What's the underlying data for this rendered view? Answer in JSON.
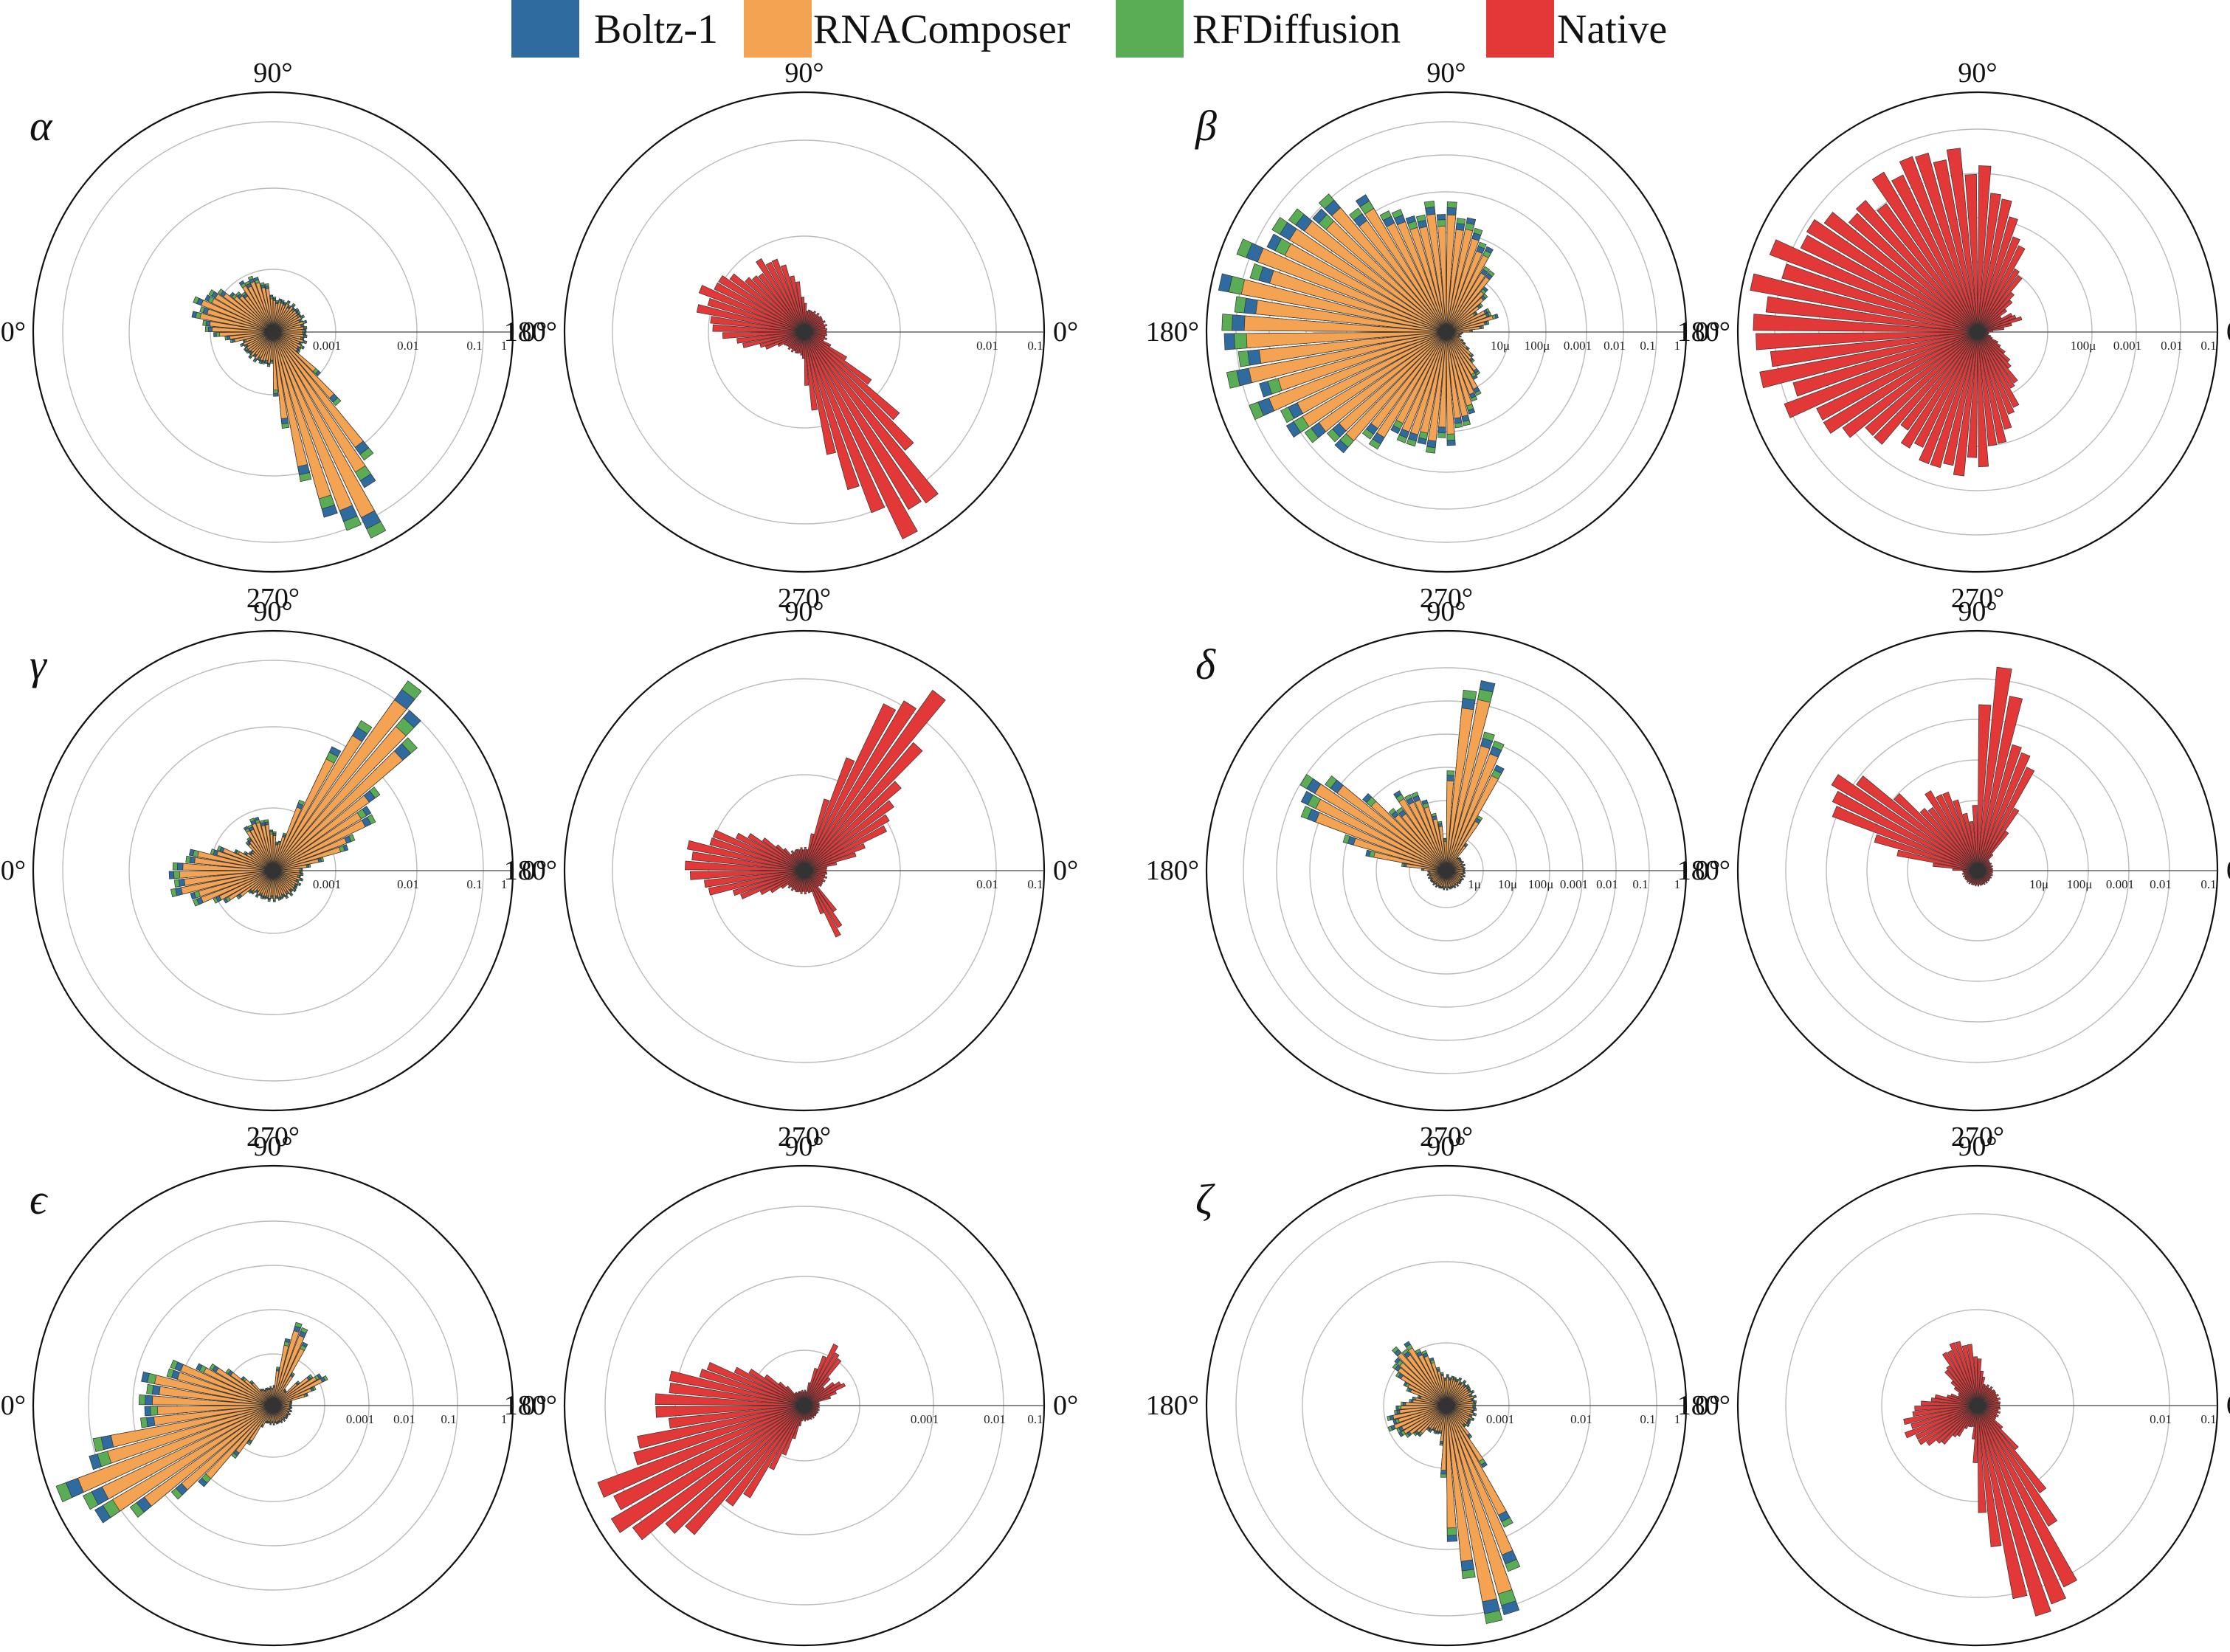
{
  "legend": [
    {
      "label": "Boltz-1",
      "color": "#2f6b9e"
    },
    {
      "label": "RNAComposer",
      "color": "#f4a353"
    },
    {
      "label": "RFDiffusion",
      "color": "#5aad55"
    },
    {
      "label": "Native",
      "color": "#e23838"
    }
  ],
  "angle_labels": {
    "deg0": "0°",
    "deg90": "90°",
    "deg180": "180°",
    "deg270": "270°"
  },
  "chart_data": [
    {
      "panel": "α",
      "type": "polar-histogram",
      "scale": "log",
      "series_shown": [
        "Boltz-1",
        "RNAComposer",
        "RFDiffusion"
      ],
      "ticks": [
        "0.001",
        "0.01",
        "0.1",
        "1"
      ],
      "peaks": [
        {
          "angle": 160,
          "value": 0.003
        },
        {
          "angle": 295,
          "value": 0.5
        }
      ]
    },
    {
      "panel": "α-native",
      "type": "polar-histogram",
      "scale": "log",
      "series_shown": [
        "Native"
      ],
      "ticks": [
        "0.01",
        "0.1"
      ],
      "peaks": [
        {
          "angle": 160,
          "value": 0.009
        },
        {
          "angle": 300,
          "value": 0.09
        }
      ]
    },
    {
      "panel": "β",
      "type": "polar-histogram",
      "scale": "log",
      "series_shown": [
        "Boltz-1",
        "RNAComposer",
        "RFDiffusion"
      ],
      "ticks": [
        "10μ",
        "100μ",
        "0.001",
        "0.01",
        "0.1",
        "1"
      ],
      "peaks": [
        {
          "angle": 170,
          "value": 0.4
        },
        {
          "angle": 90,
          "value": 0.1
        },
        {
          "angle": 250,
          "value": 0.05
        }
      ]
    },
    {
      "panel": "β-native",
      "type": "polar-histogram",
      "scale": "log",
      "series_shown": [
        "Native"
      ],
      "ticks": [
        "100μ",
        "0.001",
        "0.01",
        "0.1"
      ],
      "peaks": [
        {
          "angle": 175,
          "value": 0.2
        },
        {
          "angle": 120,
          "value": 0.05
        },
        {
          "angle": 250,
          "value": 0.03
        }
      ]
    },
    {
      "panel": "γ",
      "type": "polar-histogram",
      "scale": "log",
      "series_shown": [
        "Boltz-1",
        "RNAComposer",
        "RFDiffusion"
      ],
      "ticks": [
        "0.001",
        "0.01",
        "0.1",
        "1"
      ],
      "peaks": [
        {
          "angle": 50,
          "value": 0.5
        },
        {
          "angle": 185,
          "value": 0.005
        }
      ]
    },
    {
      "panel": "γ-native",
      "type": "polar-histogram",
      "scale": "log",
      "series_shown": [
        "Native"
      ],
      "ticks": [
        "0.01",
        "0.1"
      ],
      "peaks": [
        {
          "angle": 55,
          "value": 0.08
        },
        {
          "angle": 180,
          "value": 0.01
        }
      ]
    },
    {
      "panel": "δ",
      "type": "polar-histogram",
      "scale": "log",
      "series_shown": [
        "Boltz-1",
        "RNAComposer",
        "RFDiffusion"
      ],
      "ticks": [
        "1μ",
        "10μ",
        "100μ",
        "0.001",
        "0.01",
        "0.1",
        "1"
      ],
      "peaks": [
        {
          "angle": 80,
          "value": 0.6
        },
        {
          "angle": 150,
          "value": 0.1
        }
      ]
    },
    {
      "panel": "δ-native",
      "type": "polar-histogram",
      "scale": "log",
      "series_shown": [
        "Native"
      ],
      "ticks": [
        "10μ",
        "100μ",
        "0.001",
        "0.01",
        "0.1"
      ],
      "peaks": [
        {
          "angle": 80,
          "value": 0.3
        },
        {
          "angle": 150,
          "value": 0.05
        }
      ]
    },
    {
      "panel": "ϵ",
      "type": "polar-histogram",
      "scale": "log",
      "series_shown": [
        "Boltz-1",
        "RNAComposer",
        "RFDiffusion"
      ],
      "ticks": [
        "0.001",
        "0.01",
        "0.1",
        "1"
      ],
      "peaks": [
        {
          "angle": 205,
          "value": 0.4
        },
        {
          "angle": 75,
          "value": 0.005
        }
      ]
    },
    {
      "panel": "ϵ-native",
      "type": "polar-histogram",
      "scale": "log",
      "series_shown": [
        "Native"
      ],
      "ticks": [
        "0.001",
        "0.01",
        "0.1"
      ],
      "peaks": [
        {
          "angle": 210,
          "value": 0.05
        },
        {
          "angle": 60,
          "value": 0.002
        }
      ]
    },
    {
      "panel": "ζ",
      "type": "polar-histogram",
      "scale": "log",
      "series_shown": [
        "Boltz-1",
        "RNAComposer",
        "RFDiffusion"
      ],
      "ticks": [
        "0.001",
        "0.01",
        "0.1",
        "1"
      ],
      "peaks": [
        {
          "angle": 285,
          "value": 0.3
        },
        {
          "angle": 130,
          "value": 0.005
        }
      ]
    },
    {
      "panel": "ζ-native",
      "type": "polar-histogram",
      "scale": "log",
      "series_shown": [
        "Native"
      ],
      "ticks": [
        "0.01",
        "0.1"
      ],
      "peaks": [
        {
          "angle": 290,
          "value": 0.05
        },
        {
          "angle": 110,
          "value": 0.005
        }
      ]
    }
  ]
}
